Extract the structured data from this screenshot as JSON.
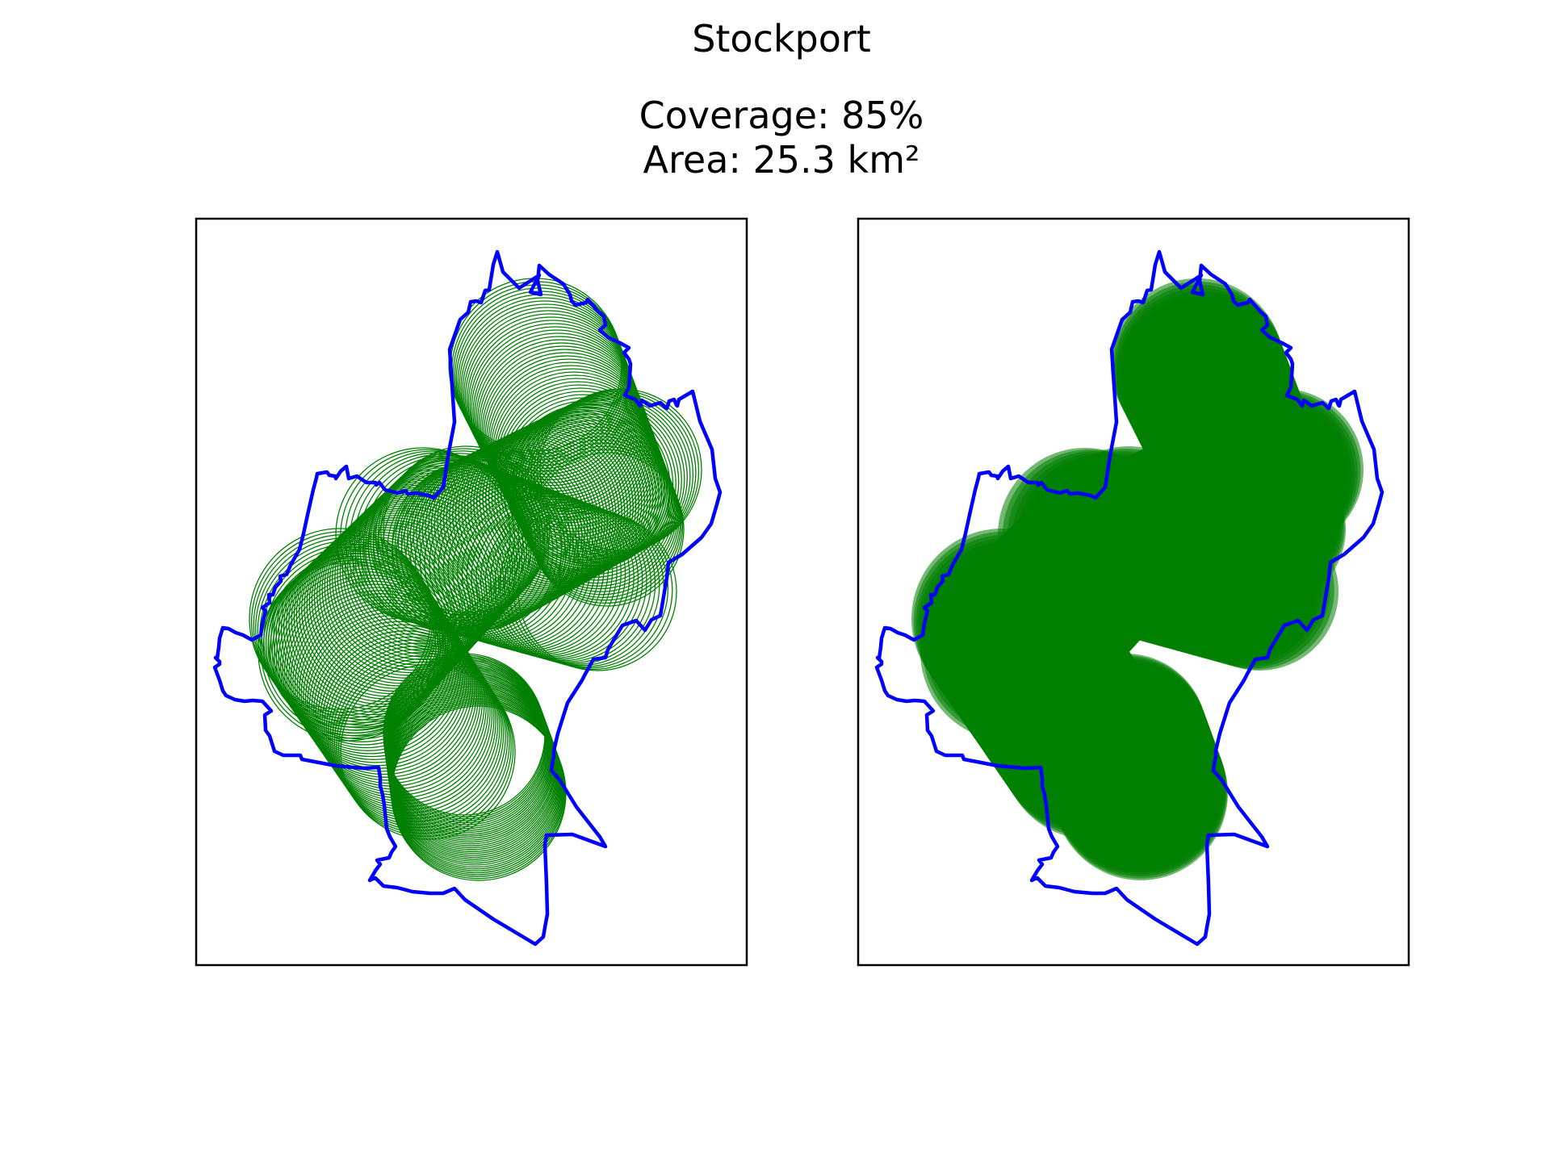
{
  "figure": {
    "title": "Stockport",
    "subtitle_line1": "Coverage: 85%",
    "subtitle_line2": "Area: 25.3 km²"
  },
  "colors": {
    "boundary": "#0000ff",
    "coverage": "#008000",
    "frame": "#000000",
    "background": "#ffffff"
  },
  "panels": [
    {
      "name": "left-panel",
      "style": "circle-outlines"
    },
    {
      "name": "right-panel",
      "style": "filled-circles"
    }
  ]
}
